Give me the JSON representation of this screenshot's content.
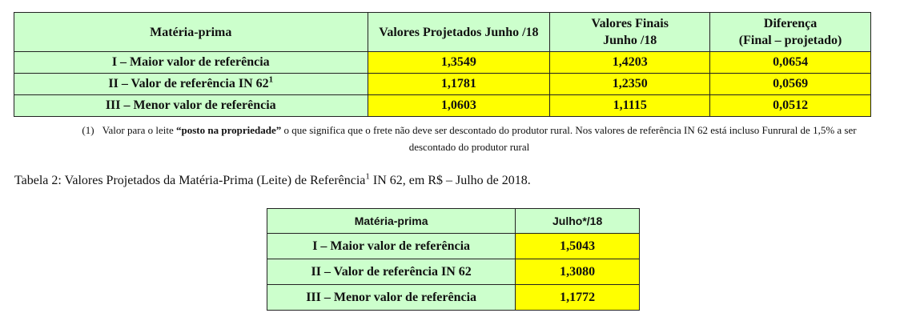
{
  "table1": {
    "headers": {
      "col1": "Matéria-prima",
      "col2": "Valores Projetados Junho /18",
      "col3_line1": "Valores Finais",
      "col3_line2": "Junho /18",
      "col4_line1": "Diferença",
      "col4_line2": "(Final – projetado)"
    },
    "rows": [
      {
        "label": "I – Maior valor de referência",
        "sup": "",
        "projetado": "1,3549",
        "final": "1,4203",
        "diferenca": "0,0654"
      },
      {
        "label": "II – Valor de referência IN 62",
        "sup": "1",
        "projetado": "1,1781",
        "final": "1,2350",
        "diferenca": "0,0569"
      },
      {
        "label": "III – Menor valor de referência",
        "sup": "",
        "projetado": "1,0603",
        "final": "1,1115",
        "diferenca": "0,0512"
      }
    ]
  },
  "footnote": {
    "number": "(1)",
    "text_before": "Valor para o leite ",
    "bold": "“posto na propriedade”",
    "text_after": " o que significa que o frete não deve ser descontado do produtor rural. Nos valores de referência IN 62 está incluso Funrural de 1,5% a ser descontado do produtor rural"
  },
  "caption": {
    "before_sup": "Tabela 2: Valores Projetados da Matéria-Prima (Leite) de Referência",
    "sup": "1",
    "after_sup": " IN 62, em R$ – Julho de 2018."
  },
  "table2": {
    "headers": {
      "col1": "Matéria-prima",
      "col2": "Julho*/18"
    },
    "rows": [
      {
        "label": "I – Maior valor de referência",
        "valor": "1,5043"
      },
      {
        "label": "II – Valor de referência IN 62",
        "valor": "1,3080"
      },
      {
        "label": "III – Menor valor de referência",
        "valor": "1,1772"
      }
    ]
  }
}
